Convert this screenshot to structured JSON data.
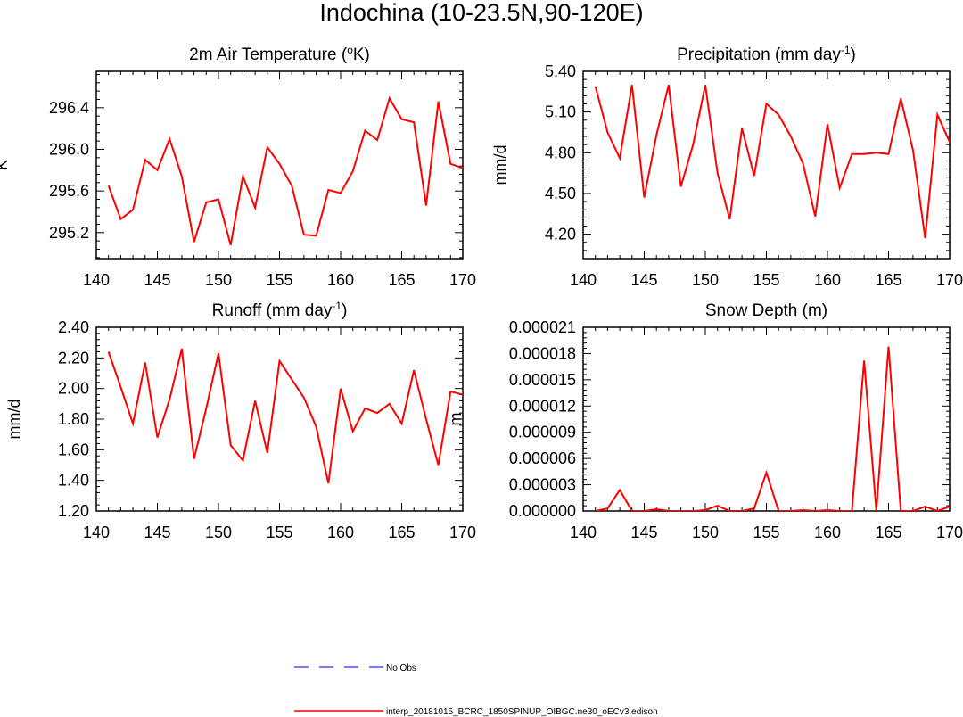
{
  "figure": {
    "title": "Indochina (10-23.5N,90-120E)"
  },
  "legend": {
    "entries": [
      {
        "label": "No Obs",
        "color": "#4d4dff",
        "dash": true
      },
      {
        "label": "interp_20181015_BCRC_1850SPINUP_OIBGC.ne30_oECv3.edison",
        "color": "#ff0000",
        "dash": false
      }
    ]
  },
  "chart_data": [
    {
      "type": "line",
      "title": "2m Air Temperature (",
      "title_sup_base": "o",
      "title_after": "K)",
      "ylabel": "K",
      "xlim": [
        140,
        170
      ],
      "ylim": [
        294.95,
        296.75
      ],
      "xticks": [
        140,
        145,
        150,
        155,
        160,
        165,
        170
      ],
      "yticks": [
        295.2,
        295.6,
        296.0,
        296.4
      ],
      "ytick_labels": [
        "295.2",
        "295.6",
        "296.0",
        "296.4"
      ],
      "x": [
        141,
        142,
        143,
        144,
        145,
        146,
        147,
        148,
        149,
        150,
        151,
        152,
        153,
        154,
        155,
        156,
        157,
        158,
        159,
        160,
        161,
        162,
        163,
        164,
        165,
        166,
        167,
        168,
        169,
        170
      ],
      "series": [
        {
          "name": "model",
          "color": "#ff0000",
          "values": [
            295.65,
            295.33,
            295.42,
            295.9,
            295.8,
            296.1,
            295.74,
            295.11,
            295.49,
            295.52,
            295.08,
            295.74,
            295.44,
            296.02,
            295.86,
            295.65,
            295.18,
            295.17,
            295.61,
            295.58,
            295.79,
            296.18,
            296.09,
            296.49,
            296.29,
            296.26,
            295.46,
            296.46,
            295.86,
            295.82
          ]
        }
      ]
    },
    {
      "type": "line",
      "title": "Precipitation (mm day",
      "title_sup": "-1",
      "title_after": ")",
      "ylabel": "mm/d",
      "xlim": [
        140,
        170
      ],
      "ylim": [
        4.02,
        5.4
      ],
      "xticks": [
        140,
        145,
        150,
        155,
        160,
        165,
        170
      ],
      "yticks": [
        4.2,
        4.5,
        4.8,
        5.1,
        5.4
      ],
      "ytick_labels": [
        "4.20",
        "4.50",
        "4.80",
        "5.10",
        "5.40"
      ],
      "x": [
        141,
        142,
        143,
        144,
        145,
        146,
        147,
        148,
        149,
        150,
        151,
        152,
        153,
        154,
        155,
        156,
        157,
        158,
        159,
        160,
        161,
        162,
        163,
        164,
        165,
        166,
        167,
        168,
        169,
        170
      ],
      "series": [
        {
          "name": "model",
          "color": "#ff0000",
          "values": [
            5.29,
            4.95,
            4.76,
            5.3,
            4.47,
            4.93,
            5.3,
            4.55,
            4.86,
            5.3,
            4.65,
            4.31,
            4.98,
            4.63,
            5.16,
            5.08,
            4.92,
            4.72,
            4.33,
            5.01,
            4.54,
            4.79,
            4.79,
            4.8,
            4.79,
            5.2,
            4.82,
            4.17,
            5.08,
            4.88
          ]
        }
      ]
    },
    {
      "type": "line",
      "title": "Runoff (mm day",
      "title_sup": "-1",
      "title_after": ")",
      "ylabel": "mm/d",
      "xlim": [
        140,
        170
      ],
      "ylim": [
        1.2,
        2.4
      ],
      "xticks": [
        140,
        145,
        150,
        155,
        160,
        165,
        170
      ],
      "yticks": [
        1.2,
        1.4,
        1.6,
        1.8,
        2.0,
        2.2,
        2.4
      ],
      "ytick_labels": [
        "1.20",
        "1.40",
        "1.60",
        "1.80",
        "2.00",
        "2.20",
        "2.40"
      ],
      "x": [
        141,
        142,
        143,
        144,
        145,
        146,
        147,
        148,
        149,
        150,
        151,
        152,
        153,
        154,
        155,
        156,
        157,
        158,
        159,
        160,
        161,
        162,
        163,
        164,
        165,
        166,
        167,
        168,
        169,
        170
      ],
      "series": [
        {
          "name": "model",
          "color": "#ff0000",
          "values": [
            2.24,
            2.01,
            1.77,
            2.17,
            1.68,
            1.93,
            2.26,
            1.54,
            1.87,
            2.23,
            1.63,
            1.53,
            1.92,
            1.58,
            2.18,
            2.06,
            1.94,
            1.75,
            1.38,
            2.0,
            1.72,
            1.87,
            1.84,
            1.9,
            1.77,
            2.12,
            1.8,
            1.5,
            1.98,
            1.96
          ]
        }
      ]
    },
    {
      "type": "line",
      "title": "Snow Depth (m)",
      "ylabel": "m",
      "xlim": [
        140,
        170
      ],
      "ylim": [
        0,
        2.1e-05
      ],
      "xticks": [
        140,
        145,
        150,
        155,
        160,
        165,
        170
      ],
      "yticks": [
        0,
        3e-06,
        6e-06,
        9e-06,
        1.2e-05,
        1.5e-05,
        1.8e-05,
        2.1e-05
      ],
      "ytick_labels": [
        "0.000000",
        "0.000003",
        "0.000006",
        "0.000009",
        "0.000012",
        "0.000015",
        "0.000018",
        "0.000021"
      ],
      "x": [
        141,
        142,
        143,
        144,
        145,
        146,
        147,
        148,
        149,
        150,
        151,
        152,
        153,
        154,
        155,
        156,
        157,
        158,
        159,
        160,
        161,
        162,
        163,
        164,
        165,
        166,
        167,
        168,
        169,
        170
      ],
      "series": [
        {
          "name": "model",
          "color": "#ff0000",
          "values": [
            0,
            3e-07,
            2.4e-06,
            0,
            0,
            2e-07,
            0,
            0,
            0,
            1e-07,
            6e-07,
            0,
            0,
            3e-07,
            4.4e-06,
            0,
            0,
            1e-07,
            0,
            1e-07,
            0,
            0,
            1.72e-05,
            0,
            1.88e-05,
            0,
            0,
            5e-07,
            0,
            5e-07
          ]
        }
      ]
    }
  ]
}
